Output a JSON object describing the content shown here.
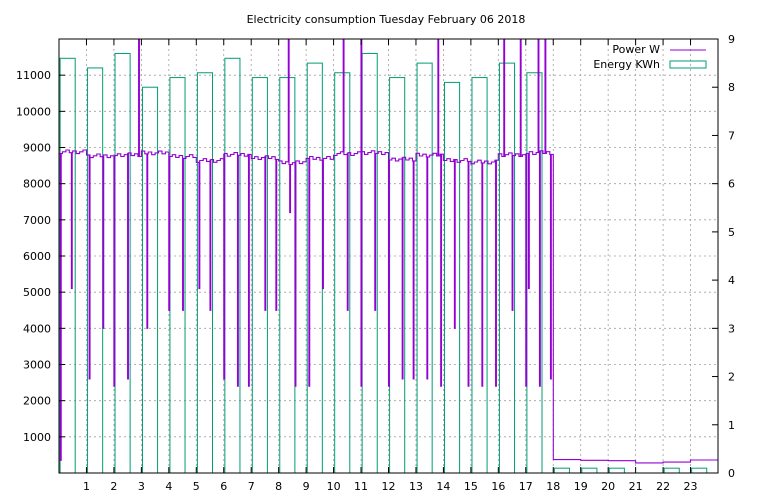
{
  "chart_data": {
    "type": "bar",
    "title": "Electricity consumption Tuesday February 06 2018",
    "xlabel": "",
    "ylabel": "",
    "y2label": "",
    "xlim": [
      0,
      24
    ],
    "ylim": [
      0,
      12000
    ],
    "y2lim": [
      0,
      9
    ],
    "grid": true,
    "legend_position": "top-right",
    "x_ticks": [
      "1",
      "2",
      "3",
      "4",
      "5",
      "6",
      "7",
      "8",
      "9",
      "10",
      "11",
      "12",
      "13",
      "14",
      "15",
      "16",
      "17",
      "18",
      "19",
      "20",
      "21",
      "22",
      "23"
    ],
    "y_ticks": [
      "1000",
      "2000",
      "3000",
      "4000",
      "5000",
      "6000",
      "7000",
      "8000",
      "9000",
      "10000",
      "11000"
    ],
    "y2_ticks": [
      "0",
      "1",
      "2",
      "3",
      "4",
      "5",
      "6",
      "7",
      "8",
      "9"
    ],
    "series": [
      {
        "name": "Energy KWh",
        "axis": "y2",
        "color": "#009e73",
        "hours": [
          0,
          1,
          2,
          3,
          4,
          5,
          6,
          7,
          8,
          9,
          10,
          11,
          12,
          13,
          14,
          15,
          16,
          17,
          18,
          19,
          20,
          21,
          22,
          23
        ],
        "values": [
          8.6,
          8.4,
          8.7,
          8.0,
          8.2,
          8.3,
          8.6,
          8.2,
          8.2,
          8.5,
          8.3,
          8.7,
          8.2,
          8.5,
          8.1,
          8.2,
          8.5,
          8.3,
          0.1,
          0.1,
          0.1,
          0.0,
          0.1,
          0.1
        ]
      },
      {
        "name": "Power W",
        "axis": "y",
        "color": "#9400d3",
        "baseline_before": 8780,
        "baseline_after": 350,
        "drop_hour": 18.05,
        "hourly_levels": [
          8880,
          8770,
          8800,
          8850,
          8750,
          8640,
          8810,
          8720,
          8580,
          8700,
          8830,
          8860,
          8680,
          8790,
          8640,
          8600,
          8800,
          8860,
          370,
          350,
          340,
          280,
          300,
          360
        ],
        "dips": [
          [
            0.05,
            350
          ],
          [
            0.45,
            5100
          ],
          [
            1.1,
            2600
          ],
          [
            1.6,
            4000
          ],
          [
            2.0,
            2400
          ],
          [
            2.5,
            2600
          ],
          [
            3.2,
            4000
          ],
          [
            4.0,
            4500
          ],
          [
            4.5,
            4500
          ],
          [
            5.1,
            5100
          ],
          [
            5.5,
            4500
          ],
          [
            6.0,
            2600
          ],
          [
            6.5,
            2400
          ],
          [
            6.9,
            2400
          ],
          [
            7.5,
            4500
          ],
          [
            7.9,
            4500
          ],
          [
            8.4,
            7200
          ],
          [
            8.6,
            2400
          ],
          [
            9.1,
            2400
          ],
          [
            9.6,
            5100
          ],
          [
            10.5,
            4500
          ],
          [
            11.0,
            2400
          ],
          [
            11.5,
            4500
          ],
          [
            12.0,
            2400
          ],
          [
            12.5,
            2600
          ],
          [
            12.9,
            2600
          ],
          [
            13.4,
            2600
          ],
          [
            13.9,
            2400
          ],
          [
            14.4,
            4000
          ],
          [
            14.9,
            2400
          ],
          [
            15.4,
            2400
          ],
          [
            15.9,
            2400
          ],
          [
            16.5,
            4500
          ],
          [
            17.0,
            2400
          ],
          [
            17.1,
            5100
          ],
          [
            17.5,
            2400
          ],
          [
            17.9,
            2600
          ]
        ],
        "spikes": [
          2.9,
          8.35,
          10.35,
          11.0,
          13.8,
          16.2,
          16.8,
          17.45,
          17.7
        ]
      }
    ]
  }
}
